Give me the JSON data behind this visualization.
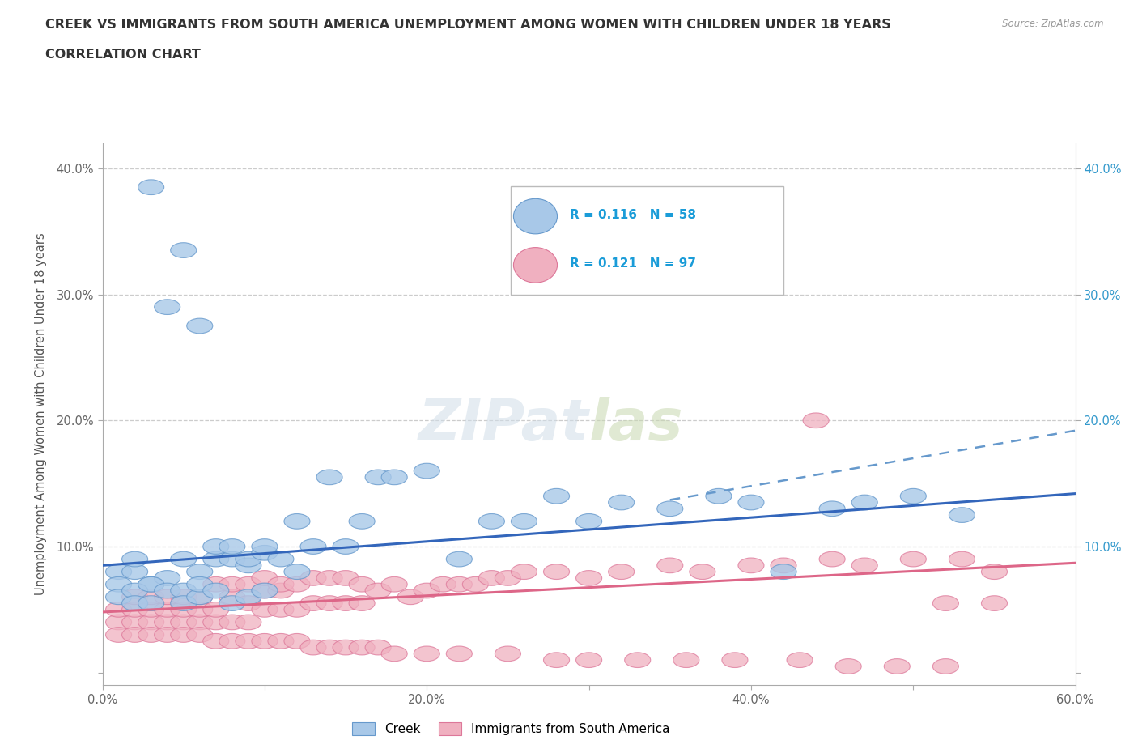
{
  "title_line1": "CREEK VS IMMIGRANTS FROM SOUTH AMERICA UNEMPLOYMENT AMONG WOMEN WITH CHILDREN UNDER 18 YEARS",
  "title_line2": "CORRELATION CHART",
  "source": "Source: ZipAtlas.com",
  "ylabel": "Unemployment Among Women with Children Under 18 years",
  "xlim": [
    0.0,
    0.6
  ],
  "ylim": [
    -0.01,
    0.42
  ],
  "xticks": [
    0.0,
    0.1,
    0.2,
    0.3,
    0.4,
    0.5,
    0.6
  ],
  "xticklabels": [
    "0.0%",
    "",
    "20.0%",
    "",
    "40.0%",
    "",
    "60.0%"
  ],
  "yticks": [
    0.0,
    0.1,
    0.2,
    0.3,
    0.4
  ],
  "yticklabels": [
    "",
    "10.0%",
    "20.0%",
    "30.0%",
    "40.0%"
  ],
  "right_yticklabels": [
    "",
    "10.0%",
    "20.0%",
    "30.0%",
    "40.0%"
  ],
  "background_color": "#ffffff",
  "grid_color": "#cccccc",
  "creek_color": "#a8c8e8",
  "creek_edge_color": "#6699cc",
  "immigrant_color": "#f0b0c0",
  "immigrant_edge_color": "#dd7799",
  "creek_R": 0.116,
  "creek_N": 58,
  "immigrant_R": 0.121,
  "immigrant_N": 97,
  "legend_color": "#1a9cd8",
  "creek_line_color": "#3366bb",
  "creek_line_dash_color": "#6699cc",
  "immigrant_line_color": "#dd6688",
  "creek_line_intercept": 0.085,
  "creek_line_slope": 0.095,
  "creek_dash_intercept": 0.06,
  "creek_dash_slope": 0.22,
  "immigrant_line_intercept": 0.048,
  "immigrant_line_slope": 0.065,
  "creek_x": [
    0.03,
    0.05,
    0.06,
    0.04,
    0.01,
    0.02,
    0.02,
    0.03,
    0.04,
    0.05,
    0.06,
    0.07,
    0.07,
    0.08,
    0.08,
    0.09,
    0.09,
    0.1,
    0.1,
    0.11,
    0.12,
    0.13,
    0.14,
    0.15,
    0.16,
    0.17,
    0.18,
    0.2,
    0.22,
    0.24,
    0.26,
    0.28,
    0.3,
    0.32,
    0.35,
    0.38,
    0.4,
    0.42,
    0.45,
    0.47,
    0.5,
    0.53,
    0.01,
    0.01,
    0.02,
    0.02,
    0.03,
    0.03,
    0.04,
    0.05,
    0.05,
    0.06,
    0.06,
    0.07,
    0.08,
    0.09,
    0.1,
    0.12
  ],
  "creek_y": [
    0.385,
    0.335,
    0.275,
    0.29,
    0.08,
    0.08,
    0.09,
    0.07,
    0.075,
    0.09,
    0.08,
    0.09,
    0.1,
    0.09,
    0.1,
    0.085,
    0.09,
    0.095,
    0.1,
    0.09,
    0.12,
    0.1,
    0.155,
    0.1,
    0.12,
    0.155,
    0.155,
    0.16,
    0.09,
    0.12,
    0.12,
    0.14,
    0.12,
    0.135,
    0.13,
    0.14,
    0.135,
    0.08,
    0.13,
    0.135,
    0.14,
    0.125,
    0.07,
    0.06,
    0.065,
    0.055,
    0.055,
    0.07,
    0.065,
    0.065,
    0.055,
    0.06,
    0.07,
    0.065,
    0.055,
    0.06,
    0.065,
    0.08
  ],
  "immigrant_x": [
    0.01,
    0.01,
    0.02,
    0.02,
    0.02,
    0.03,
    0.03,
    0.03,
    0.04,
    0.04,
    0.04,
    0.05,
    0.05,
    0.05,
    0.06,
    0.06,
    0.06,
    0.07,
    0.07,
    0.07,
    0.08,
    0.08,
    0.08,
    0.09,
    0.09,
    0.09,
    0.1,
    0.1,
    0.1,
    0.11,
    0.11,
    0.11,
    0.12,
    0.12,
    0.13,
    0.13,
    0.14,
    0.14,
    0.15,
    0.15,
    0.16,
    0.16,
    0.17,
    0.18,
    0.19,
    0.2,
    0.21,
    0.22,
    0.23,
    0.24,
    0.25,
    0.26,
    0.28,
    0.3,
    0.32,
    0.35,
    0.37,
    0.4,
    0.42,
    0.45,
    0.47,
    0.5,
    0.53,
    0.55,
    0.01,
    0.02,
    0.03,
    0.04,
    0.05,
    0.06,
    0.07,
    0.08,
    0.09,
    0.1,
    0.11,
    0.12,
    0.13,
    0.14,
    0.15,
    0.16,
    0.17,
    0.18,
    0.2,
    0.22,
    0.25,
    0.28,
    0.3,
    0.33,
    0.36,
    0.39,
    0.43,
    0.46,
    0.49,
    0.52,
    0.55,
    0.44,
    0.52
  ],
  "immigrant_y": [
    0.04,
    0.05,
    0.04,
    0.05,
    0.06,
    0.04,
    0.05,
    0.06,
    0.04,
    0.05,
    0.06,
    0.04,
    0.05,
    0.06,
    0.04,
    0.05,
    0.06,
    0.04,
    0.05,
    0.07,
    0.04,
    0.06,
    0.07,
    0.04,
    0.055,
    0.07,
    0.05,
    0.065,
    0.075,
    0.05,
    0.065,
    0.07,
    0.05,
    0.07,
    0.055,
    0.075,
    0.055,
    0.075,
    0.055,
    0.075,
    0.055,
    0.07,
    0.065,
    0.07,
    0.06,
    0.065,
    0.07,
    0.07,
    0.07,
    0.075,
    0.075,
    0.08,
    0.08,
    0.075,
    0.08,
    0.085,
    0.08,
    0.085,
    0.085,
    0.09,
    0.085,
    0.09,
    0.09,
    0.08,
    0.03,
    0.03,
    0.03,
    0.03,
    0.03,
    0.03,
    0.025,
    0.025,
    0.025,
    0.025,
    0.025,
    0.025,
    0.02,
    0.02,
    0.02,
    0.02,
    0.02,
    0.015,
    0.015,
    0.015,
    0.015,
    0.01,
    0.01,
    0.01,
    0.01,
    0.01,
    0.01,
    0.005,
    0.005,
    0.005,
    0.055,
    0.2,
    0.055
  ]
}
